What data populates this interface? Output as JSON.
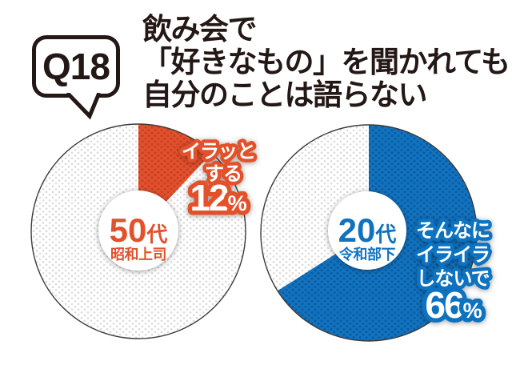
{
  "question": {
    "badge": "Q18",
    "title_lines": [
      "飲み会で",
      "「好きなもの」を聞かれても",
      "自分のことは語らない"
    ]
  },
  "colors": {
    "red": "#e3512c",
    "red_dot": "#c53e26",
    "blue": "#1173c0",
    "blue_dot": "#0c5a9d",
    "gray_dot": "#dadada",
    "ink": "#231815"
  },
  "chart_data": [
    {
      "type": "pie",
      "center_number": "50",
      "center_suffix": "代",
      "center_subtitle": "昭和上司",
      "slices": [
        {
          "label": "イラッとする",
          "value_pct": 12,
          "color": "#e3512c",
          "pattern": "red polka dots"
        },
        {
          "label": "",
          "value_pct": 88,
          "color": "#ffffff",
          "pattern": "gray polka dots"
        }
      ],
      "callout": {
        "lines": [
          "イラッと",
          "する"
        ],
        "value": "12",
        "unit": "%"
      },
      "start_angle_deg": 0,
      "direction": "clockwise"
    },
    {
      "type": "pie",
      "center_number": "20",
      "center_suffix": "代",
      "center_subtitle": "令和部下",
      "slices": [
        {
          "label": "そんなにイライラしないで",
          "value_pct": 66,
          "color": "#1173c0",
          "pattern": "blue polka dots"
        },
        {
          "label": "",
          "value_pct": 34,
          "color": "#ffffff",
          "pattern": "gray polka dots"
        }
      ],
      "callout": {
        "lines": [
          "そんなに",
          "イライラ",
          "しないで"
        ],
        "value": "66",
        "unit": "%"
      },
      "start_angle_deg": 0,
      "direction": "clockwise"
    }
  ]
}
